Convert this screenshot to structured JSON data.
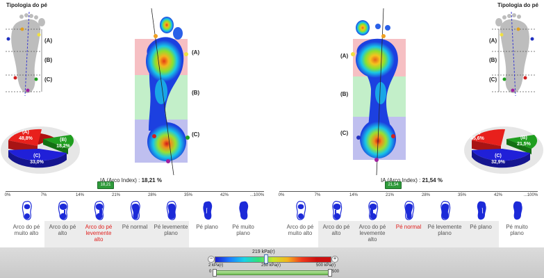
{
  "left": {
    "title": "Tipologia do pé",
    "zones": [
      "(A)",
      "(B)",
      "(C)"
    ],
    "pie": [
      {
        "label": "(A)",
        "value": "48,8%",
        "color": "#e8201c"
      },
      {
        "label": "(B)",
        "value": "18,2%",
        "color": "#1f9e1f"
      },
      {
        "label": "(C)",
        "value": "33,0%",
        "color": "#2020d8"
      }
    ],
    "ia_label": "IA (Arco Index) :",
    "ia_value": "18,21 %",
    "marker": "18,21",
    "selected_category": 2
  },
  "right": {
    "title": "Tipologia do pé",
    "zones": [
      "(A)",
      "(B)",
      "(C)"
    ],
    "pie": [
      {
        "label": "(A)",
        "value": "45,6%",
        "color": "#e8201c"
      },
      {
        "label": "(B)",
        "value": "21,5%",
        "color": "#1f9e1f"
      },
      {
        "label": "(C)",
        "value": "32,9%",
        "color": "#2020d8"
      }
    ],
    "ia_label": "IA (Arco Index) :",
    "ia_value": "21,54 %",
    "marker": "21,54",
    "selected_category": 3
  },
  "scale_ticks": [
    "0%",
    "7%",
    "14%",
    "21%",
    "28%",
    "35%",
    "42%",
    "...100%"
  ],
  "categories": [
    "Arco do pé muito alto",
    "Arco do pé alto",
    "Arco do pé levemente alto",
    "Pé normal",
    "Pé levemente plano",
    "Pé plano",
    "Pé muito plano"
  ],
  "pressure": {
    "current": "219 kPa(r)",
    "min": "2 kPa(r)",
    "mid": "250 kPa(r)",
    "max": "500 kPa(r)",
    "range_min": "0",
    "range_max": "500",
    "current_fraction": 0.438
  }
}
